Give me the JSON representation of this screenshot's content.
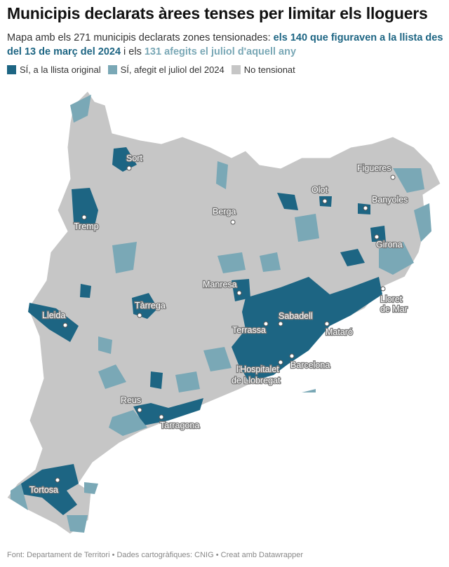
{
  "title": "Municipis declarats àrees tenses per limitar els lloguers",
  "subtitle": {
    "part1": "Mapa amb els 271 municipis declarats zones tensionades: ",
    "highlight_original": "els 140 que figuraven a la llista des del 13 de març del 2024",
    "part2": " i els ",
    "highlight_added": "131 afegits el juliol d'aquell any"
  },
  "legend": [
    {
      "label": "SÍ, a la llista original",
      "color": "#1d6583"
    },
    {
      "label": "SÍ, afegit el juliol del 2024",
      "color": "#7aa8b6"
    },
    {
      "label": "No tensionat",
      "color": "#c6c6c6"
    }
  ],
  "cities": [
    {
      "name": "Sort"
    },
    {
      "name": "Figueres"
    },
    {
      "name": "Olot"
    },
    {
      "name": "Banyoles"
    },
    {
      "name": "Berga"
    },
    {
      "name": "Tremp"
    },
    {
      "name": "Girona"
    },
    {
      "name": "Manresa"
    },
    {
      "name": "Lloret"
    },
    {
      "name": "de Mar"
    },
    {
      "name": "Tàrrega"
    },
    {
      "name": "Lleida"
    },
    {
      "name": "Sabadell"
    },
    {
      "name": "Terrassa"
    },
    {
      "name": "Mataró"
    },
    {
      "name": "l'Hospitalet"
    },
    {
      "name": "de Llobregat"
    },
    {
      "name": "Barcelona"
    },
    {
      "name": "Reus"
    },
    {
      "name": "Tarragona"
    },
    {
      "name": "Tortosa"
    }
  ],
  "footer": "Font: Departament de Territori • Dades cartogràfiques: CNIG  • Creat amb Datawrapper"
}
